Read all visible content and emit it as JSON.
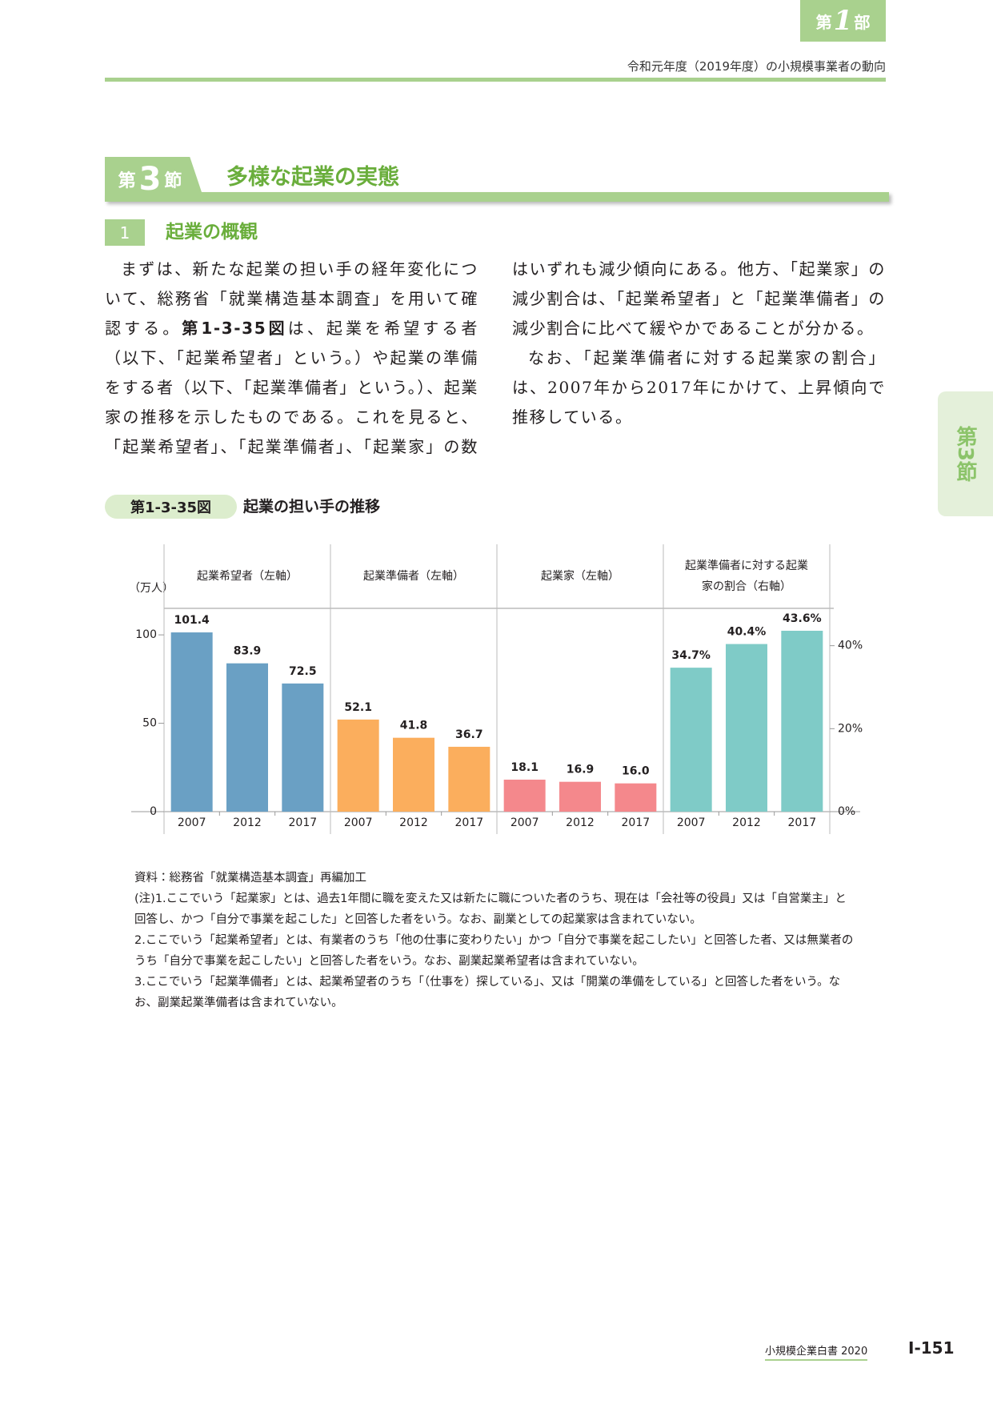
{
  "header": {
    "part_prefix": "第",
    "part_number": "1",
    "part_suffix": "部",
    "running_title": "令和元年度（2019年度）の小規模事業者の動向"
  },
  "section": {
    "prefix": "第",
    "number": "3",
    "suffix": "節",
    "title": "多様な起業の実態"
  },
  "subsection": {
    "number": "1",
    "title": "起業の概観"
  },
  "paragraphs": [
    {
      "before": "まずは、新たな起業の担い手の経年変化について、総務省「就業構造基本調査」を用いて確認する。",
      "ref": "第1-3-35図",
      "after": "は、起業を希望する者（以下、「起業希望者」という。）や起業の準備をする者（以下、「起業準備者」という。）、起業家の推移を示したものである。これを見ると、「起業希望者」、「起業準備者」、「起業家」の数はいずれも減少傾向にある。他方、「起業家」の減少割合は、「起業希望者」と「起業準備者」の減少割合に比べて緩やかであることが分かる。"
    },
    {
      "text": "なお、「起業準備者に対する起業家の割合」は、2007年から2017年にかけて、上昇傾向で推移している。"
    }
  ],
  "side_tab": "第3節",
  "figure": {
    "number": "第1-3-35図",
    "title": "起業の担い手の推移"
  },
  "chart_data": {
    "type": "bar",
    "y_label": "（万人）",
    "categories": [
      "2007",
      "2012",
      "2017"
    ],
    "ylim": [
      0,
      115
    ],
    "yticks": [
      0,
      50,
      100
    ],
    "y2lim": [
      0,
      49
    ],
    "y2ticks": [
      {
        "value": 0,
        "label": "0%"
      },
      {
        "value": 20,
        "label": "20%"
      },
      {
        "value": 40,
        "label": "40%"
      }
    ],
    "series": [
      {
        "name": "起業希望者（左軸）",
        "color": "#6aa0c4",
        "values": [
          101.4,
          83.9,
          72.5
        ],
        "value_labels": [
          "101.4",
          "83.9",
          "72.5"
        ]
      },
      {
        "name": "起業準備者（左軸）",
        "color": "#fbae5d",
        "values": [
          52.1,
          41.8,
          36.7
        ],
        "value_labels": [
          "52.1",
          "41.8",
          "36.7"
        ]
      },
      {
        "name": "起業家（左軸）",
        "color": "#f4888c",
        "values": [
          18.1,
          16.9,
          16.0
        ],
        "value_labels": [
          "18.1",
          "16.9",
          "16.0"
        ]
      },
      {
        "name": "起業準備者に対する起業家の割合（右軸）",
        "color": "#7fcbc7",
        "axis": "y2",
        "values": [
          34.7,
          40.4,
          43.6
        ],
        "value_labels": [
          "34.7%",
          "40.4%",
          "43.6%"
        ]
      }
    ]
  },
  "notes": {
    "source": "資料：総務省「就業構造基本調査」再編加工",
    "items": [
      "(注)1.ここでいう「起業家」とは、過去1年間に職を変えた又は新たに職についた者のうち、現在は「会社等の役員」又は「自営業主」と回答し、かつ「自分で事業を起こした」と回答した者をいう。なお、副業としての起業家は含まれていない。",
      "2.ここでいう「起業希望者」とは、有業者のうち「他の仕事に変わりたい」かつ「自分で事業を起こしたい」と回答した者、又は無業者のうち「自分で事業を起こしたい」と回答した者をいう。なお、副業起業希望者は含まれていない。",
      "3.ここでいう「起業準備者」とは、起業希望者のうち「（仕事を）探している」、又は「開業の準備をしている」と回答した者をいう。なお、副業起業準備者は含まれていない。"
    ]
  },
  "footer": {
    "book": "小規模企業白書 2020",
    "page": "Ⅰ-151"
  }
}
